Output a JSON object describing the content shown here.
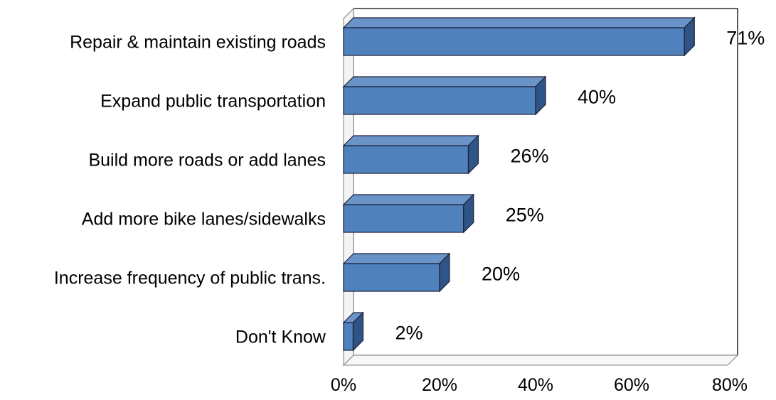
{
  "chart_data": {
    "type": "bar",
    "orientation": "horizontal",
    "style": "3d",
    "categories": [
      "Repair & maintain existing roads",
      "Expand public transportation",
      "Build more roads or add lanes",
      "Add more bike lanes/sidewalks",
      "Increase frequency of public trans.",
      "Don't Know"
    ],
    "values": [
      71,
      40,
      26,
      25,
      20,
      2
    ],
    "data_labels": [
      "71%",
      "40%",
      "26%",
      "25%",
      "20%",
      "2%"
    ],
    "xlim": [
      0,
      80
    ],
    "xticks": [
      0,
      20,
      40,
      60,
      80
    ],
    "xtick_labels": [
      "0%",
      "20%",
      "40%",
      "60%",
      "80%"
    ],
    "grid": false,
    "legend": "none",
    "colors": {
      "bar_front": "#4F81BD",
      "bar_top": "#6A94C8",
      "bar_side": "#2F5586",
      "bar_outline": "#1F1F3A",
      "frame": "#000000",
      "wall": "#ffffff"
    }
  }
}
